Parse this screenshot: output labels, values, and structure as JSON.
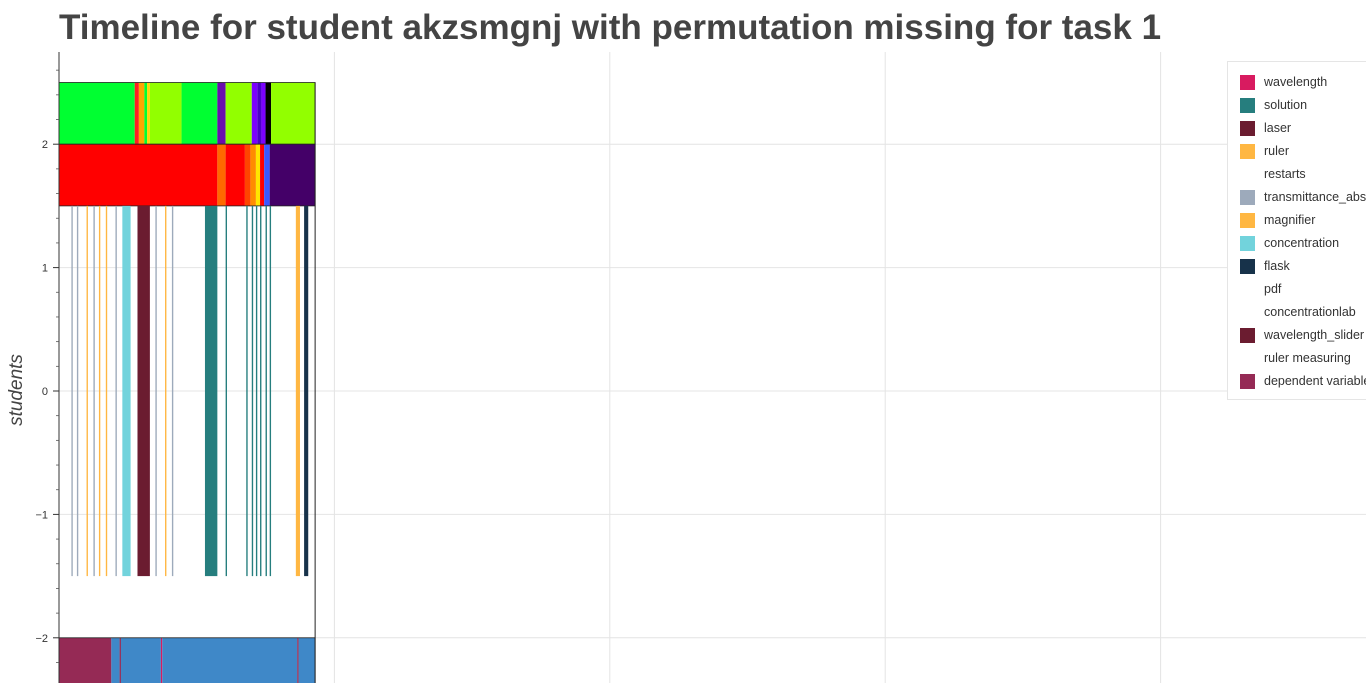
{
  "title": "Timeline for student akzsmgnj with permutation missing for task 1",
  "chart_data": {
    "type": "bar",
    "title": "Timeline for student akzsmgnj with permutation missing for task 1",
    "xlabel": "",
    "ylabel": "students",
    "ylim": [
      -2.38,
      2.75
    ],
    "xlim": [
      0,
      100
    ],
    "yticks": [
      {
        "value": 2,
        "label": "2"
      },
      {
        "value": 1,
        "label": "1"
      },
      {
        "value": 0,
        "label": "0"
      },
      {
        "value": -1,
        "label": "−1"
      },
      {
        "value": -2,
        "label": "−2"
      }
    ],
    "xgrid": [
      0,
      20,
      40,
      60,
      80
    ],
    "grid": true,
    "legend_position": "top-right",
    "legend": [
      {
        "label": "wavelength",
        "color": "#d81b60"
      },
      {
        "label": "solution",
        "color": "#267e7e"
      },
      {
        "label": "laser",
        "color": "#6b1c30"
      },
      {
        "label": "ruler",
        "color": "#ffb742"
      },
      {
        "label": "restarts",
        "color": ""
      },
      {
        "label": "transmittance_absorbance",
        "color": "#9daabb"
      },
      {
        "label": "magnifier",
        "color": "#ffb742"
      },
      {
        "label": "concentration",
        "color": "#72d3dc"
      },
      {
        "label": "flask",
        "color": "#17324a"
      },
      {
        "label": "pdf",
        "color": ""
      },
      {
        "label": "concentrationlab",
        "color": ""
      },
      {
        "label": "wavelength_slider",
        "color": "#6b1c30"
      },
      {
        "label": "ruler measuring",
        "color": ""
      },
      {
        "label": "dependent variable",
        "color": "#952a55"
      }
    ],
    "rows": [
      {
        "y_top": 2.5,
        "y_bottom": 2.0,
        "segments": [
          {
            "start": 0,
            "end": 5.5,
            "color": "#00ff31"
          },
          {
            "start": 5.5,
            "end": 5.8,
            "color": "#ff2020"
          },
          {
            "start": 5.8,
            "end": 6.2,
            "color": "#ffa500"
          },
          {
            "start": 6.2,
            "end": 6.4,
            "color": "#00ff31"
          },
          {
            "start": 6.4,
            "end": 6.6,
            "color": "#ffd700"
          },
          {
            "start": 6.6,
            "end": 8.9,
            "color": "#92ff00"
          },
          {
            "start": 8.9,
            "end": 11.5,
            "color": "#00ff31"
          },
          {
            "start": 11.5,
            "end": 12.1,
            "color": "#6a0dad"
          },
          {
            "start": 12.1,
            "end": 14.0,
            "color": "#92ff00"
          },
          {
            "start": 14.0,
            "end": 14.4,
            "color": "#7b00ff"
          },
          {
            "start": 14.4,
            "end": 14.7,
            "color": "#4b00c8"
          },
          {
            "start": 14.7,
            "end": 15.0,
            "color": "#7b00ff"
          },
          {
            "start": 15.0,
            "end": 15.4,
            "color": "#000000"
          },
          {
            "start": 15.4,
            "end": 18.6,
            "color": "#92ff00"
          }
        ]
      },
      {
        "y_top": 2.0,
        "y_bottom": 1.5,
        "segments": [
          {
            "start": 0,
            "end": 11.5,
            "color": "#ff0000"
          },
          {
            "start": 11.5,
            "end": 12.1,
            "color": "#ff6a00"
          },
          {
            "start": 12.1,
            "end": 13.5,
            "color": "#ff0000"
          },
          {
            "start": 13.5,
            "end": 13.9,
            "color": "#ff4500"
          },
          {
            "start": 13.9,
            "end": 14.3,
            "color": "#ff8c00"
          },
          {
            "start": 14.3,
            "end": 14.6,
            "color": "#ffe600"
          },
          {
            "start": 14.6,
            "end": 14.9,
            "color": "#ff0000"
          },
          {
            "start": 14.9,
            "end": 15.3,
            "color": "#3a57ff"
          },
          {
            "start": 15.3,
            "end": 18.6,
            "color": "#440068"
          }
        ]
      },
      {
        "y_top": 1.5,
        "y_bottom": -1.5,
        "segments": [
          {
            "start": 0.9,
            "end": 1.0,
            "color": "#9daabb"
          },
          {
            "start": 1.3,
            "end": 1.4,
            "color": "#9daabb"
          },
          {
            "start": 2.0,
            "end": 2.1,
            "color": "#ffb742"
          },
          {
            "start": 2.5,
            "end": 2.6,
            "color": "#9daabb"
          },
          {
            "start": 2.9,
            "end": 3.0,
            "color": "#ffb742"
          },
          {
            "start": 3.4,
            "end": 3.5,
            "color": "#ffb742"
          },
          {
            "start": 4.1,
            "end": 4.2,
            "color": "#9daabb"
          },
          {
            "start": 4.6,
            "end": 5.2,
            "color": "#72d3dc"
          },
          {
            "start": 5.7,
            "end": 6.6,
            "color": "#6b1c30"
          },
          {
            "start": 7.0,
            "end": 7.1,
            "color": "#9daabb"
          },
          {
            "start": 7.7,
            "end": 7.8,
            "color": "#ffb742"
          },
          {
            "start": 8.2,
            "end": 8.3,
            "color": "#9daabb"
          },
          {
            "start": 10.6,
            "end": 11.5,
            "color": "#267e7e"
          },
          {
            "start": 12.1,
            "end": 12.2,
            "color": "#267e7e"
          },
          {
            "start": 13.6,
            "end": 13.7,
            "color": "#267e7e"
          },
          {
            "start": 14.0,
            "end": 14.1,
            "color": "#267e7e"
          },
          {
            "start": 14.3,
            "end": 14.4,
            "color": "#267e7e"
          },
          {
            "start": 14.6,
            "end": 14.7,
            "color": "#267e7e"
          },
          {
            "start": 15.0,
            "end": 15.1,
            "color": "#267e7e"
          },
          {
            "start": 15.3,
            "end": 15.4,
            "color": "#267e7e"
          },
          {
            "start": 17.2,
            "end": 17.5,
            "color": "#ffb742"
          },
          {
            "start": 17.8,
            "end": 18.1,
            "color": "#17324a"
          }
        ]
      },
      {
        "y_top": -2.0,
        "y_bottom": -2.5,
        "segments": [
          {
            "start": 0,
            "end": 3.8,
            "color": "#952a55"
          },
          {
            "start": 3.8,
            "end": 4.4,
            "color": "#3f88c8"
          },
          {
            "start": 4.4,
            "end": 4.5,
            "color": "#952a55"
          },
          {
            "start": 4.5,
            "end": 7.4,
            "color": "#3f88c8"
          },
          {
            "start": 7.4,
            "end": 7.5,
            "color": "#d81b60"
          },
          {
            "start": 7.5,
            "end": 17.3,
            "color": "#3f88c8"
          },
          {
            "start": 17.3,
            "end": 17.4,
            "color": "#952a55"
          },
          {
            "start": 17.4,
            "end": 18.6,
            "color": "#3f88c8"
          }
        ]
      }
    ]
  }
}
